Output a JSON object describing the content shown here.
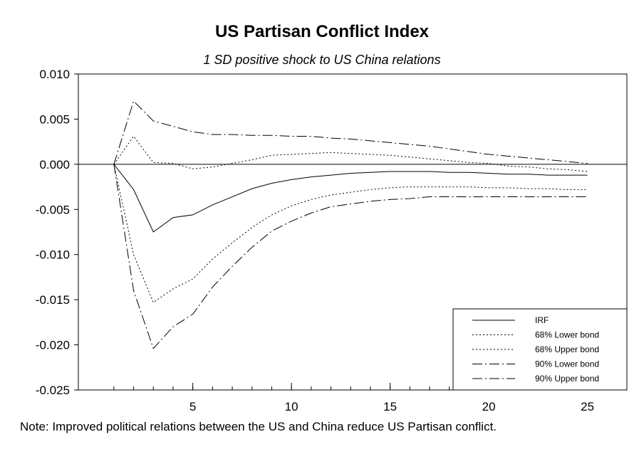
{
  "chart_data": {
    "type": "line",
    "title": "US Partisan Conflict Index",
    "subtitle": "1 SD positive shock to US China relations",
    "xlabel": "",
    "ylabel": "",
    "xlim": [
      -0.8,
      27
    ],
    "ylim": [
      -0.025,
      0.01
    ],
    "x_ticks": [
      5,
      10,
      15,
      20,
      25
    ],
    "y_ticks": [
      0.01,
      0.005,
      0.0,
      -0.005,
      -0.01,
      -0.015,
      -0.02,
      -0.025
    ],
    "y_tick_labels": [
      "0.010",
      "0.005",
      "0.000",
      "-0.005",
      "-0.010",
      "-0.015",
      "-0.020",
      "-0.025"
    ],
    "grid": false,
    "zero_line": true,
    "legend_position": "bottom-right",
    "x": [
      1,
      2,
      3,
      4,
      5,
      6,
      7,
      8,
      9,
      10,
      11,
      12,
      13,
      14,
      15,
      16,
      17,
      18,
      19,
      20,
      21,
      22,
      23,
      24,
      25
    ],
    "series": [
      {
        "name": "IRF",
        "dash": "solid",
        "values": [
          0,
          -0.0028,
          -0.0075,
          -0.0059,
          -0.0056,
          -0.0045,
          -0.0036,
          -0.0027,
          -0.0021,
          -0.0017,
          -0.0014,
          -0.0012,
          -0.001,
          -0.0009,
          -0.0008,
          -0.0008,
          -0.0008,
          -0.0009,
          -0.0009,
          -0.001,
          -0.0011,
          -0.0011,
          -0.0012,
          -0.0012,
          -0.0012
        ]
      },
      {
        "name": "68% Lower bond",
        "dash": "dot",
        "values": [
          0,
          -0.01,
          -0.0153,
          -0.0138,
          -0.0127,
          -0.0105,
          -0.0087,
          -0.007,
          -0.0056,
          -0.0046,
          -0.0039,
          -0.0034,
          -0.0031,
          -0.0028,
          -0.0026,
          -0.0025,
          -0.0025,
          -0.0025,
          -0.0025,
          -0.0026,
          -0.0026,
          -0.0027,
          -0.0027,
          -0.0028,
          -0.0028
        ]
      },
      {
        "name": "68% Upper bond",
        "dash": "dot",
        "values": [
          0,
          0.0031,
          0.0002,
          0.0001,
          -0.0005,
          -0.0003,
          0.0001,
          0.0005,
          0.001,
          0.0011,
          0.0012,
          0.0013,
          0.0012,
          0.0011,
          0.001,
          0.0008,
          0.0006,
          0.0004,
          0.0002,
          0.0001,
          -0.0002,
          -0.0003,
          -0.0005,
          -0.0006,
          -0.0008
        ]
      },
      {
        "name": "90% Lower bond",
        "dash": "dashdot",
        "values": [
          0,
          -0.014,
          -0.0204,
          -0.018,
          -0.0166,
          -0.0136,
          -0.0113,
          -0.0092,
          -0.0074,
          -0.0063,
          -0.0054,
          -0.0047,
          -0.0044,
          -0.0041,
          -0.0039,
          -0.0038,
          -0.0036,
          -0.0036,
          -0.0036,
          -0.0036,
          -0.0036,
          -0.0036,
          -0.0036,
          -0.0036,
          -0.0036
        ]
      },
      {
        "name": "90% Upper bond",
        "dash": "dashdot",
        "values": [
          0,
          0.007,
          0.0048,
          0.0042,
          0.0036,
          0.0033,
          0.0033,
          0.0032,
          0.0032,
          0.0031,
          0.0031,
          0.0029,
          0.0028,
          0.0026,
          0.0024,
          0.0022,
          0.002,
          0.0017,
          0.0014,
          0.0011,
          0.0009,
          0.0007,
          0.0005,
          0.0003,
          0.0001
        ]
      }
    ]
  },
  "note": "Note: Improved political relations between the US and China reduce US Partisan conflict."
}
